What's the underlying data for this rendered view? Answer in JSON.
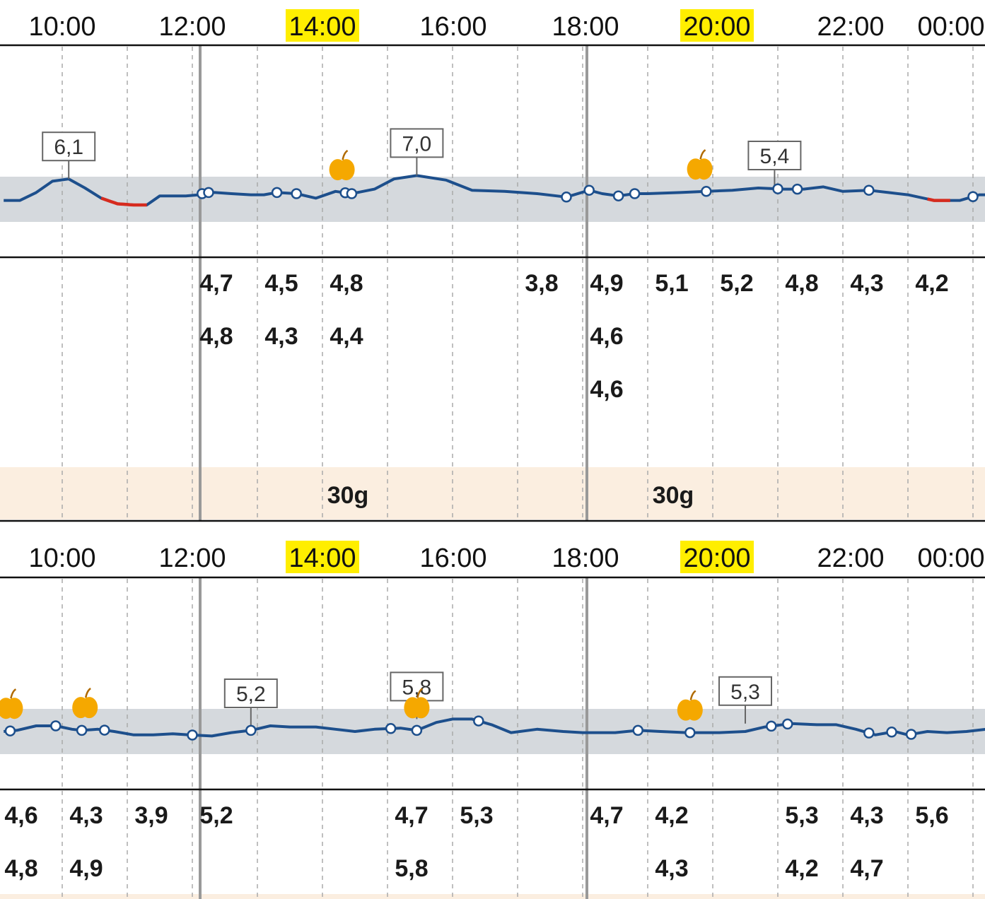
{
  "colors": {
    "target_band": "#d5d9dd",
    "glucose_line": "#1d4f8c",
    "low_segment": "#d62b1e",
    "carb_band": "#fbeee0",
    "time_highlight": "#ffee00",
    "meal_icon": "#f5a800",
    "divider": "#999999",
    "grid": "#aaaaaa"
  },
  "icons": {
    "meal": "apple-icon"
  },
  "chart_data": [
    {
      "type": "line",
      "x_ticks": [
        "10:00",
        "12:00",
        "14:00",
        "16:00",
        "18:00",
        "20:00",
        "22:00",
        "00:00"
      ],
      "highlighted_ticks": [
        "14:00",
        "20:00"
      ],
      "x_range_hours": [
        9,
        24
      ],
      "target_range": [
        4.0,
        6.0
      ],
      "series": [
        {
          "points": [
            [
              9.1,
              4.95
            ],
            [
              9.35,
              4.95
            ],
            [
              9.6,
              5.3
            ],
            [
              9.85,
              5.8
            ],
            [
              10.1,
              5.9
            ],
            [
              10.35,
              5.5
            ],
            [
              10.6,
              5.05
            ],
            [
              10.85,
              4.8
            ],
            [
              11.1,
              4.75
            ],
            [
              11.3,
              4.75
            ],
            [
              11.5,
              5.15
            ],
            [
              11.9,
              5.15
            ],
            [
              12.1,
              5.2
            ],
            [
              12.2,
              5.3
            ],
            [
              12.35,
              5.3
            ],
            [
              12.6,
              5.25
            ],
            [
              12.9,
              5.2
            ],
            [
              13.1,
              5.2
            ],
            [
              13.3,
              5.3
            ],
            [
              13.6,
              5.25
            ],
            [
              13.9,
              5.05
            ],
            [
              14.2,
              5.35
            ],
            [
              14.45,
              5.25
            ],
            [
              14.8,
              5.45
            ],
            [
              15.1,
              5.9
            ],
            [
              15.45,
              6.05
            ],
            [
              15.9,
              5.85
            ],
            [
              16.3,
              5.4
            ],
            [
              16.8,
              5.35
            ],
            [
              17.3,
              5.25
            ],
            [
              17.75,
              5.1
            ],
            [
              18.1,
              5.4
            ],
            [
              18.3,
              5.25
            ],
            [
              18.55,
              5.15
            ],
            [
              18.8,
              5.25
            ],
            [
              19.0,
              5.25
            ],
            [
              19.5,
              5.3
            ],
            [
              19.9,
              5.35
            ],
            [
              20.3,
              5.4
            ],
            [
              20.7,
              5.5
            ],
            [
              21.1,
              5.45
            ],
            [
              21.4,
              5.45
            ],
            [
              21.7,
              5.55
            ],
            [
              22.0,
              5.35
            ],
            [
              22.4,
              5.4
            ],
            [
              22.7,
              5.3
            ],
            [
              23.0,
              5.2
            ],
            [
              23.4,
              4.95
            ],
            [
              23.8,
              4.95
            ],
            [
              24.1,
              5.2
            ],
            [
              24.5,
              5.2
            ],
            [
              24.9,
              5.0
            ]
          ],
          "low_segments": [
            [
              10.6,
              11.3
            ],
            [
              23.3,
              23.65
            ]
          ]
        }
      ],
      "markers": [
        12.15,
        12.25,
        13.3,
        13.6,
        14.35,
        14.45,
        17.75,
        18.1,
        18.55,
        18.8,
        19.9,
        21.0,
        21.3,
        22.4,
        24.0
      ],
      "meals": [
        14.3,
        19.8
      ],
      "labels": [
        {
          "x": 10.1,
          "y": 5.9,
          "text": "6,1"
        },
        {
          "x": 15.45,
          "y": 6.05,
          "text": "7,0"
        },
        {
          "x": 20.95,
          "y": 5.5,
          "text": "5,4"
        }
      ],
      "readings": [
        {
          "col": 12.5,
          "values": [
            "4,7",
            "4,8"
          ]
        },
        {
          "col": 13.5,
          "values": [
            "4,5",
            "4,3"
          ]
        },
        {
          "col": 14.5,
          "values": [
            "4,8",
            "4,4"
          ]
        },
        {
          "col": 17.5,
          "values": [
            "3,8"
          ]
        },
        {
          "col": 18.5,
          "values": [
            "4,9",
            "4,6",
            "4,6"
          ]
        },
        {
          "col": 19.5,
          "values": [
            "5,1"
          ]
        },
        {
          "col": 20.5,
          "values": [
            "5,2"
          ]
        },
        {
          "col": 21.5,
          "values": [
            "4,8"
          ]
        },
        {
          "col": 22.5,
          "values": [
            "4,3"
          ]
        },
        {
          "col": 23.5,
          "values": [
            "4,2"
          ]
        }
      ],
      "carbs": [
        {
          "col": 14.5,
          "value": "30g"
        },
        {
          "col": 19.5,
          "value": "30g"
        }
      ]
    },
    {
      "type": "line",
      "x_ticks": [
        "10:00",
        "12:00",
        "14:00",
        "16:00",
        "18:00",
        "20:00",
        "22:00",
        "00:00"
      ],
      "highlighted_ticks": [
        "14:00",
        "20:00"
      ],
      "x_range_hours": [
        9,
        24
      ],
      "target_range": [
        4.0,
        6.0
      ],
      "series": [
        {
          "points": [
            [
              9.1,
              5.0
            ],
            [
              9.3,
              5.05
            ],
            [
              9.6,
              5.25
            ],
            [
              9.9,
              5.25
            ],
            [
              10.15,
              5.1
            ],
            [
              10.3,
              5.05
            ],
            [
              10.55,
              5.1
            ],
            [
              10.8,
              5.0
            ],
            [
              11.1,
              4.85
            ],
            [
              11.4,
              4.85
            ],
            [
              11.7,
              4.9
            ],
            [
              11.95,
              4.85
            ],
            [
              12.3,
              4.8
            ],
            [
              12.6,
              4.95
            ],
            [
              12.9,
              5.05
            ],
            [
              13.2,
              5.25
            ],
            [
              13.5,
              5.2
            ],
            [
              13.9,
              5.2
            ],
            [
              14.2,
              5.1
            ],
            [
              14.5,
              5.0
            ],
            [
              14.8,
              5.1
            ],
            [
              15.2,
              5.15
            ],
            [
              15.45,
              5.05
            ],
            [
              15.75,
              5.4
            ],
            [
              16.0,
              5.55
            ],
            [
              16.3,
              5.55
            ],
            [
              16.6,
              5.3
            ],
            [
              16.9,
              4.95
            ],
            [
              17.3,
              5.1
            ],
            [
              17.7,
              5.0
            ],
            [
              18.0,
              4.95
            ],
            [
              18.5,
              4.95
            ],
            [
              18.85,
              5.05
            ],
            [
              19.2,
              5.0
            ],
            [
              19.6,
              4.95
            ],
            [
              20.1,
              4.95
            ],
            [
              20.5,
              5.0
            ],
            [
              20.8,
              5.2
            ],
            [
              21.2,
              5.35
            ],
            [
              21.6,
              5.3
            ],
            [
              21.9,
              5.3
            ],
            [
              22.2,
              5.1
            ],
            [
              22.5,
              4.85
            ],
            [
              22.8,
              5.0
            ],
            [
              23.0,
              4.85
            ],
            [
              23.3,
              5.0
            ],
            [
              23.6,
              4.95
            ],
            [
              23.9,
              5.0
            ],
            [
              24.2,
              5.1
            ],
            [
              24.5,
              5.6
            ],
            [
              24.9,
              5.1
            ]
          ],
          "low_segments": []
        }
      ],
      "markers": [
        9.2,
        9.9,
        10.3,
        10.65,
        12.0,
        12.9,
        15.05,
        15.45,
        16.4,
        18.85,
        19.65,
        20.9,
        21.15,
        22.4,
        22.75,
        23.05,
        24.5
      ],
      "meals": [
        9.2,
        10.35,
        15.45,
        19.65
      ],
      "labels": [
        {
          "x": 12.9,
          "y": 5.25,
          "text": "5,2"
        },
        {
          "x": 15.45,
          "y": 5.55,
          "text": "5,8"
        },
        {
          "x": 20.5,
          "y": 5.35,
          "text": "5,3"
        }
      ],
      "readings": [
        {
          "col": 9.5,
          "values": [
            "4,6",
            "4,8"
          ]
        },
        {
          "col": 10.5,
          "values": [
            "4,3",
            "4,9"
          ]
        },
        {
          "col": 11.5,
          "values": [
            "3,9"
          ]
        },
        {
          "col": 12.5,
          "values": [
            "5,2"
          ]
        },
        {
          "col": 15.5,
          "values": [
            "4,7",
            "5,8"
          ]
        },
        {
          "col": 16.5,
          "values": [
            "5,3"
          ]
        },
        {
          "col": 18.5,
          "values": [
            "4,7"
          ]
        },
        {
          "col": 19.5,
          "values": [
            "4,2",
            "4,3"
          ]
        },
        {
          "col": 21.5,
          "values": [
            "5,3",
            "4,2"
          ]
        },
        {
          "col": 22.5,
          "values": [
            "4,3",
            "4,7"
          ]
        },
        {
          "col": 23.5,
          "values": [
            "5,6"
          ]
        }
      ],
      "carbs": []
    }
  ]
}
